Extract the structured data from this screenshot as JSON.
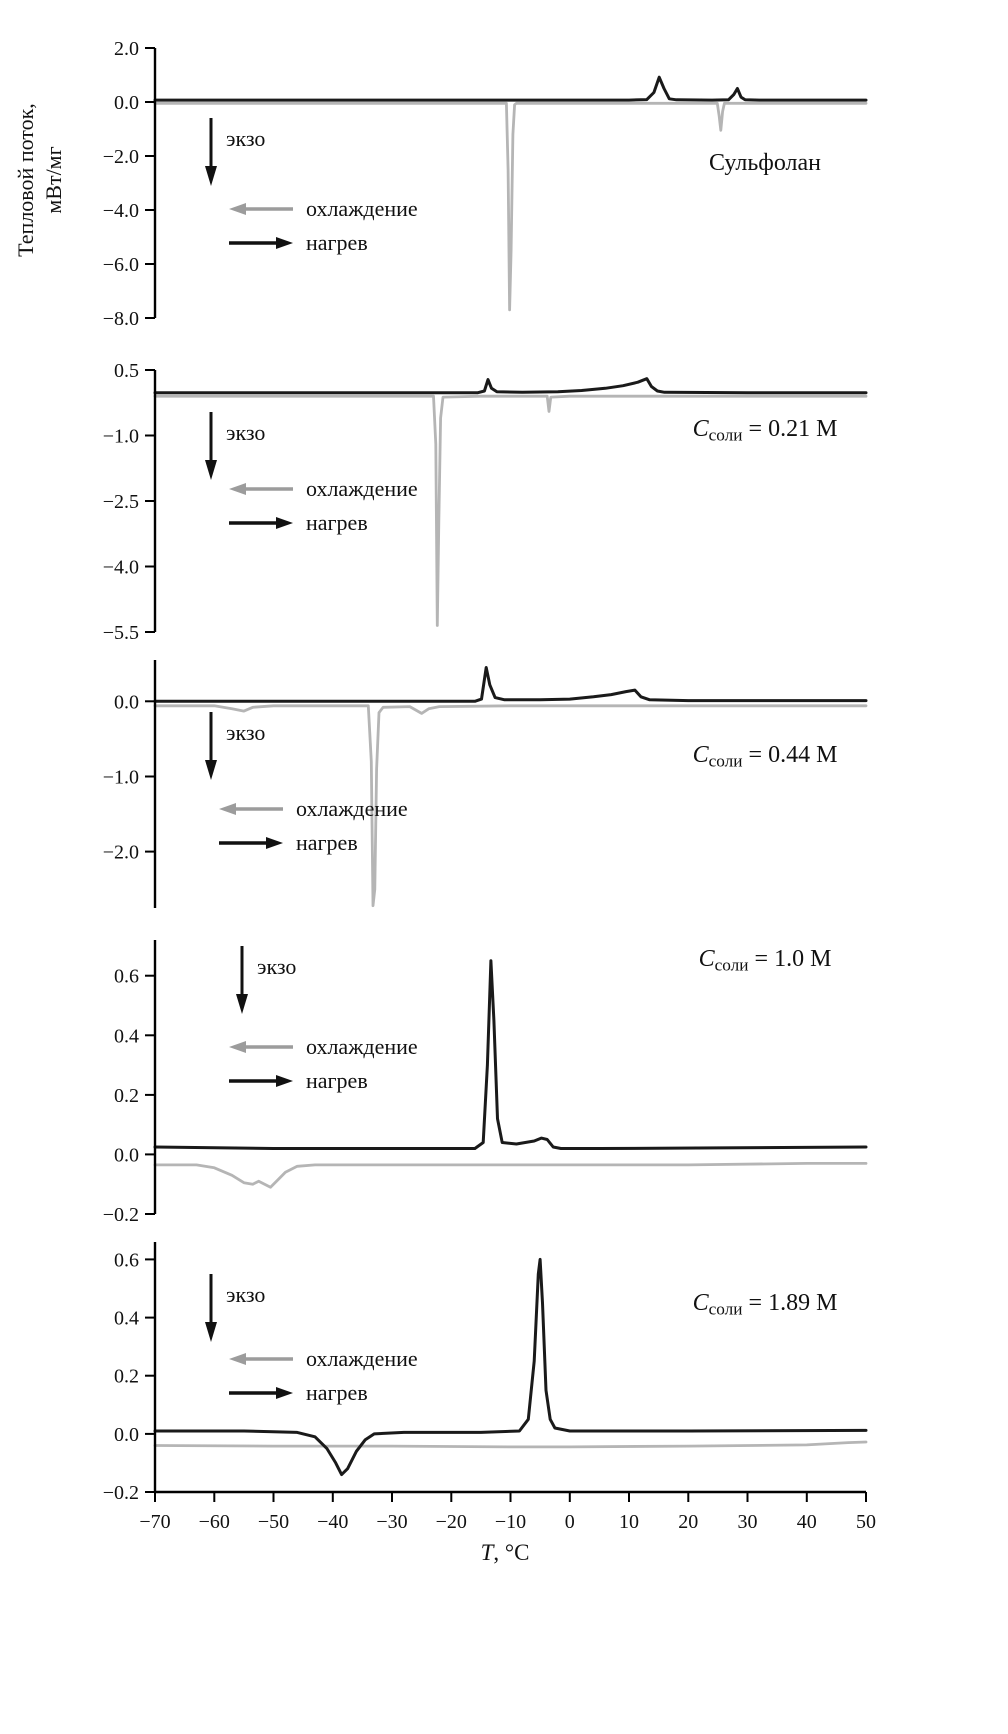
{
  "figure": {
    "ylabel_line1": "Тепловой поток,",
    "ylabel_line2": "мВт/мг",
    "exo_label": "экзо",
    "legend_cooling": "охлаждение",
    "legend_heating": "нагрев",
    "colors": {
      "heating": "#1a1a1a",
      "cooling": "#b5b5b5"
    }
  },
  "xaxis": {
    "lim": [
      -70,
      50
    ],
    "ticks": [
      -70,
      -60,
      -50,
      -40,
      -30,
      -20,
      -10,
      0,
      10,
      20,
      30,
      40,
      50
    ],
    "label_var": "T",
    "label_rest": ", °C"
  },
  "chart_data": [
    {
      "type": "line",
      "label": {
        "main": "Сульфолан",
        "var": "",
        "sub": "",
        "eq": ""
      },
      "xlim": [
        -70,
        50
      ],
      "ylim": [
        -8.0,
        2.0
      ],
      "yticks": [
        2.0,
        0.0,
        -2.0,
        -4.0,
        -6.0,
        -8.0
      ],
      "series": [
        {
          "key": "cooling",
          "name": "охлаждение",
          "color": "#b5b5b5",
          "width": 2.8,
          "points": [
            [
              -70,
              -0.05
            ],
            [
              -40,
              -0.05
            ],
            [
              -20,
              -0.05
            ],
            [
              -10.7,
              -0.05
            ],
            [
              -10.4,
              -2.5
            ],
            [
              -10.15,
              -7.7
            ],
            [
              -9.9,
              -5.5
            ],
            [
              -9.6,
              -1.2
            ],
            [
              -9.3,
              -0.1
            ],
            [
              -9,
              -0.05
            ],
            [
              0,
              -0.05
            ],
            [
              10,
              -0.05
            ],
            [
              24.9,
              -0.05
            ],
            [
              25.2,
              -0.5
            ],
            [
              25.5,
              -1.05
            ],
            [
              25.8,
              -0.35
            ],
            [
              26.1,
              -0.05
            ],
            [
              35,
              -0.05
            ],
            [
              50,
              -0.05
            ]
          ]
        },
        {
          "key": "heating",
          "name": "нагрев",
          "color": "#1a1a1a",
          "width": 3,
          "points": [
            [
              -70,
              0.07
            ],
            [
              -50,
              0.07
            ],
            [
              -30,
              0.07
            ],
            [
              -10,
              0.07
            ],
            [
              0,
              0.07
            ],
            [
              10,
              0.07
            ],
            [
              13,
              0.09
            ],
            [
              14.2,
              0.35
            ],
            [
              15.1,
              0.92
            ],
            [
              15.9,
              0.5
            ],
            [
              16.8,
              0.12
            ],
            [
              18,
              0.08
            ],
            [
              24,
              0.07
            ],
            [
              26.8,
              0.08
            ],
            [
              27.7,
              0.28
            ],
            [
              28.3,
              0.5
            ],
            [
              28.9,
              0.18
            ],
            [
              29.6,
              0.08
            ],
            [
              32,
              0.07
            ],
            [
              50,
              0.07
            ]
          ]
        }
      ]
    },
    {
      "type": "line",
      "label": {
        "main": "",
        "var": "C",
        "sub": "соли",
        "eq": " = 0.21 М"
      },
      "xlim": [
        -70,
        50
      ],
      "ylim": [
        -5.5,
        0.5
      ],
      "yticks": [
        0.5,
        -1.0,
        -2.5,
        -4.0,
        -5.5
      ],
      "series": [
        {
          "key": "cooling",
          "name": "охлаждение",
          "color": "#b5b5b5",
          "width": 2.8,
          "points": [
            [
              -70,
              -0.1
            ],
            [
              -40,
              -0.1
            ],
            [
              -23,
              -0.1
            ],
            [
              -22.6,
              -1.2
            ],
            [
              -22.35,
              -5.35
            ],
            [
              -22.1,
              -3.0
            ],
            [
              -21.8,
              -0.6
            ],
            [
              -21.4,
              -0.12
            ],
            [
              -15,
              -0.1
            ],
            [
              -3.8,
              -0.1
            ],
            [
              -3.5,
              -0.45
            ],
            [
              -3.2,
              -0.12
            ],
            [
              0,
              -0.1
            ],
            [
              20,
              -0.1
            ],
            [
              50,
              -0.1
            ]
          ]
        },
        {
          "key": "heating",
          "name": "нагрев",
          "color": "#1a1a1a",
          "width": 3,
          "points": [
            [
              -70,
              -0.02
            ],
            [
              -40,
              -0.02
            ],
            [
              -15.5,
              -0.02
            ],
            [
              -14.4,
              0.02
            ],
            [
              -13.8,
              0.28
            ],
            [
              -13.2,
              0.08
            ],
            [
              -12.3,
              0.0
            ],
            [
              -8,
              -0.01
            ],
            [
              -2,
              0.0
            ],
            [
              2,
              0.03
            ],
            [
              6,
              0.08
            ],
            [
              9,
              0.14
            ],
            [
              11.5,
              0.22
            ],
            [
              13,
              0.3
            ],
            [
              13.8,
              0.12
            ],
            [
              14.8,
              0.02
            ],
            [
              16,
              -0.01
            ],
            [
              30,
              -0.02
            ],
            [
              50,
              -0.02
            ]
          ]
        }
      ]
    },
    {
      "type": "line",
      "label": {
        "main": "",
        "var": "C",
        "sub": "соли",
        "eq": " = 0.44 М"
      },
      "xlim": [
        -70,
        50
      ],
      "ylim": [
        -2.75,
        0.55
      ],
      "yticks": [
        0.0,
        -1.0,
        -2.0
      ],
      "series": [
        {
          "key": "cooling",
          "name": "охлаждение",
          "color": "#b5b5b5",
          "width": 2.8,
          "points": [
            [
              -70,
              -0.06
            ],
            [
              -60,
              -0.06
            ],
            [
              -57,
              -0.1
            ],
            [
              -55,
              -0.13
            ],
            [
              -53.5,
              -0.08
            ],
            [
              -50,
              -0.06
            ],
            [
              -40,
              -0.06
            ],
            [
              -34,
              -0.06
            ],
            [
              -33.5,
              -0.8
            ],
            [
              -33.2,
              -2.72
            ],
            [
              -32.9,
              -2.5
            ],
            [
              -32.6,
              -0.9
            ],
            [
              -32.2,
              -0.15
            ],
            [
              -31.5,
              -0.08
            ],
            [
              -27,
              -0.07
            ],
            [
              -25,
              -0.16
            ],
            [
              -23.8,
              -0.1
            ],
            [
              -22,
              -0.07
            ],
            [
              -10,
              -0.06
            ],
            [
              0,
              -0.06
            ],
            [
              20,
              -0.06
            ],
            [
              50,
              -0.06
            ]
          ]
        },
        {
          "key": "heating",
          "name": "нагрев",
          "color": "#1a1a1a",
          "width": 3,
          "points": [
            [
              -70,
              0.0
            ],
            [
              -50,
              0.0
            ],
            [
              -16,
              0.0
            ],
            [
              -14.9,
              0.03
            ],
            [
              -14.1,
              0.45
            ],
            [
              -13.5,
              0.22
            ],
            [
              -12.6,
              0.05
            ],
            [
              -11,
              0.02
            ],
            [
              -5,
              0.02
            ],
            [
              0,
              0.03
            ],
            [
              4,
              0.06
            ],
            [
              7,
              0.09
            ],
            [
              9.5,
              0.13
            ],
            [
              11,
              0.15
            ],
            [
              12,
              0.06
            ],
            [
              13.5,
              0.02
            ],
            [
              20,
              0.01
            ],
            [
              50,
              0.01
            ]
          ]
        }
      ]
    },
    {
      "type": "line",
      "label": {
        "main": "",
        "var": "C",
        "sub": "соли",
        "eq": " = 1.0 М"
      },
      "xlim": [
        -70,
        50
      ],
      "ylim": [
        -0.2,
        0.72
      ],
      "yticks": [
        0.6,
        0.4,
        0.2,
        0.0,
        -0.2
      ],
      "series": [
        {
          "key": "cooling",
          "name": "охлаждение",
          "color": "#b5b5b5",
          "width": 2.8,
          "points": [
            [
              -70,
              -0.035
            ],
            [
              -63,
              -0.035
            ],
            [
              -60,
              -0.045
            ],
            [
              -57,
              -0.07
            ],
            [
              -55,
              -0.095
            ],
            [
              -53.5,
              -0.1
            ],
            [
              -52.5,
              -0.09
            ],
            [
              -51.5,
              -0.1
            ],
            [
              -50.5,
              -0.11
            ],
            [
              -49.5,
              -0.09
            ],
            [
              -48,
              -0.06
            ],
            [
              -46,
              -0.04
            ],
            [
              -43,
              -0.035
            ],
            [
              -30,
              -0.035
            ],
            [
              -15,
              -0.035
            ],
            [
              0,
              -0.035
            ],
            [
              20,
              -0.035
            ],
            [
              40,
              -0.03
            ],
            [
              50,
              -0.03
            ]
          ]
        },
        {
          "key": "heating",
          "name": "нагрев",
          "color": "#1a1a1a",
          "width": 3,
          "points": [
            [
              -70,
              0.025
            ],
            [
              -50,
              0.02
            ],
            [
              -30,
              0.02
            ],
            [
              -16,
              0.02
            ],
            [
              -14.6,
              0.04
            ],
            [
              -13.9,
              0.3
            ],
            [
              -13.3,
              0.65
            ],
            [
              -12.8,
              0.45
            ],
            [
              -12.2,
              0.12
            ],
            [
              -11.4,
              0.04
            ],
            [
              -9,
              0.035
            ],
            [
              -6,
              0.045
            ],
            [
              -4.8,
              0.055
            ],
            [
              -3.8,
              0.05
            ],
            [
              -2.8,
              0.025
            ],
            [
              -1.5,
              0.02
            ],
            [
              5,
              0.02
            ],
            [
              25,
              0.022
            ],
            [
              50,
              0.025
            ]
          ]
        }
      ]
    },
    {
      "type": "line",
      "label": {
        "main": "",
        "var": "C",
        "sub": "соли",
        "eq": " = 1.89 М"
      },
      "xlim": [
        -70,
        50
      ],
      "ylim": [
        -0.2,
        0.66
      ],
      "yticks": [
        0.6,
        0.4,
        0.2,
        0.0,
        -0.2
      ],
      "series": [
        {
          "key": "cooling",
          "name": "охлаждение",
          "color": "#b5b5b5",
          "width": 2.8,
          "points": [
            [
              -70,
              -0.04
            ],
            [
              -50,
              -0.042
            ],
            [
              -30,
              -0.042
            ],
            [
              -10,
              -0.045
            ],
            [
              0,
              -0.045
            ],
            [
              20,
              -0.042
            ],
            [
              40,
              -0.038
            ],
            [
              47,
              -0.03
            ],
            [
              50,
              -0.028
            ]
          ]
        },
        {
          "key": "heating",
          "name": "нагрев",
          "color": "#1a1a1a",
          "width": 3,
          "points": [
            [
              -70,
              0.01
            ],
            [
              -55,
              0.01
            ],
            [
              -46,
              0.005
            ],
            [
              -43,
              -0.01
            ],
            [
              -41,
              -0.05
            ],
            [
              -39.5,
              -0.1
            ],
            [
              -38.5,
              -0.14
            ],
            [
              -37.5,
              -0.12
            ],
            [
              -36,
              -0.06
            ],
            [
              -34.5,
              -0.02
            ],
            [
              -33,
              0.0
            ],
            [
              -28,
              0.005
            ],
            [
              -15,
              0.005
            ],
            [
              -8.5,
              0.01
            ],
            [
              -7,
              0.05
            ],
            [
              -6,
              0.25
            ],
            [
              -5.3,
              0.55
            ],
            [
              -5,
              0.6
            ],
            [
              -4.6,
              0.45
            ],
            [
              -4,
              0.15
            ],
            [
              -3.3,
              0.05
            ],
            [
              -2.5,
              0.02
            ],
            [
              0,
              0.01
            ],
            [
              20,
              0.01
            ],
            [
              50,
              0.012
            ]
          ]
        }
      ]
    }
  ]
}
